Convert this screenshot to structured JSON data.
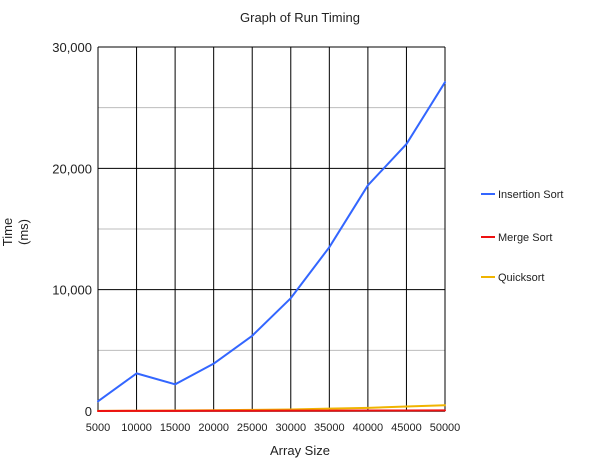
{
  "chart_data": {
    "type": "line",
    "title": "Graph of Run Timing",
    "xlabel": "Array Size",
    "ylabel": "Time\n(ms)",
    "ylim": [
      0,
      30000
    ],
    "yticks": [
      0,
      10000,
      20000,
      30000
    ],
    "yticklabels": [
      "0",
      "10,000",
      "20,000",
      "30,000"
    ],
    "yminor": [
      5000,
      15000,
      25000
    ],
    "x": [
      5000,
      10000,
      15000,
      20000,
      25000,
      30000,
      35000,
      40000,
      45000,
      50000
    ],
    "xticklabels": [
      "5000",
      "10000",
      "15000",
      "20000",
      "25000",
      "30000",
      "35000",
      "40000",
      "45000",
      "50000"
    ],
    "grid": true,
    "legend_position": "right",
    "series": [
      {
        "name": "Insertion Sort",
        "color": "#3366ff",
        "values": [
          800,
          3100,
          2200,
          3900,
          6200,
          9300,
          13500,
          18600,
          22000,
          27100
        ]
      },
      {
        "name": "Merge Sort",
        "color": "#ee1111",
        "values": [
          5,
          10,
          15,
          20,
          25,
          30,
          35,
          40,
          45,
          50
        ]
      },
      {
        "name": "Quicksort",
        "color": "#f0b400",
        "values": [
          10,
          20,
          40,
          60,
          90,
          120,
          200,
          260,
          370,
          470
        ]
      }
    ]
  }
}
